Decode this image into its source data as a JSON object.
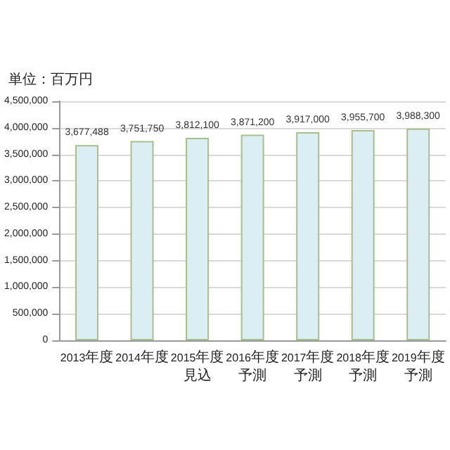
{
  "chart_data": {
    "type": "bar",
    "ylabel": "単位：百万円",
    "categories": [
      "2013年度",
      "2014年度",
      "2015年度見込",
      "2016年度予測",
      "2017年度予測",
      "2018年度予測",
      "2019年度予測"
    ],
    "values": [
      3677488,
      3751750,
      3812100,
      3871200,
      3917000,
      3955700,
      3988300
    ],
    "value_labels": [
      "3,677,488",
      "3,751,750",
      "3,812,100",
      "3,871,200",
      "3,917,000",
      "3,955,700",
      "3,988,300"
    ],
    "color": "#daeef3",
    "ylim": [
      0,
      4500000
    ],
    "yticks": [
      0,
      {
        "value": 500000,
        "label": "500,000"
      },
      {
        "value": 1000000,
        "label": "1,000,000"
      },
      {
        "value": 1500000,
        "label": "1,500,000"
      },
      {
        "value": 2000000,
        "label": "2,000,000"
      },
      {
        "value": 2500000,
        "label": "2,500,000"
      },
      {
        "value": 3000000,
        "label": "3,000,000"
      },
      {
        "value": 3500000,
        "label": "3,500,000"
      },
      {
        "value": 4000000,
        "label": "4,000,000"
      },
      {
        "value": 4500000,
        "label": "4,500,000"
      }
    ],
    "grid": "y"
  }
}
